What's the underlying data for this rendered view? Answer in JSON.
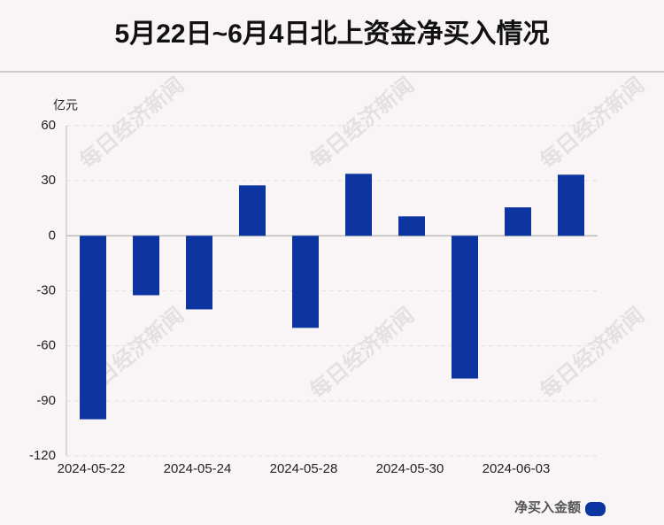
{
  "chart_data": {
    "type": "bar",
    "title": "5月22日~6月4日北上资金净买入情况",
    "y_unit": "亿元",
    "watermark": "每日经济新闻",
    "categories": [
      "2024-05-22",
      null,
      "2024-05-24",
      null,
      "2024-05-28",
      null,
      "2024-05-30",
      null,
      "2024-06-03",
      null
    ],
    "series": [
      {
        "name": "净买入金额",
        "color": "#0d35a0",
        "values": [
          -100,
          -32.4,
          -40.1,
          27.5,
          -50.2,
          33.8,
          10.6,
          -77.8,
          15.5,
          33.3
        ]
      }
    ],
    "ylim": [
      -120,
      60
    ],
    "yticks": [
      -120,
      -90,
      -60,
      -30,
      0,
      30,
      60
    ],
    "grid": true,
    "legend": "bottom-right"
  }
}
